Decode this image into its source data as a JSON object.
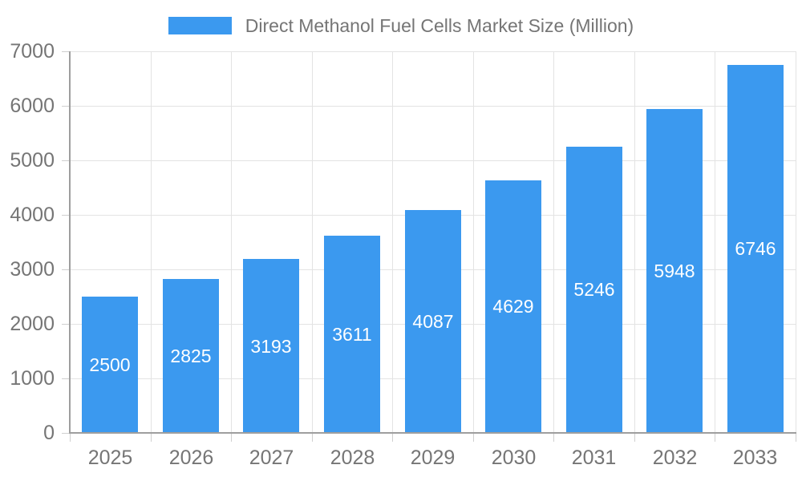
{
  "chart_data": {
    "type": "bar",
    "title": "Direct Methanol Fuel Cells Market Size (Million)",
    "legend": {
      "position": "top",
      "entries": [
        "Direct Methanol Fuel Cells Market Size (Million)"
      ]
    },
    "categories": [
      "2025",
      "2026",
      "2027",
      "2028",
      "2029",
      "2030",
      "2031",
      "2032",
      "2033"
    ],
    "series": [
      {
        "name": "Direct Methanol Fuel Cells Market Size (Million)",
        "values": [
          2500,
          2825,
          3193,
          3611,
          4087,
          4629,
          5246,
          5948,
          6746
        ]
      }
    ],
    "value_labels": [
      "2500",
      "2825",
      "3193",
      "3611",
      "4087",
      "4629",
      "5246",
      "5948",
      "6746"
    ],
    "xlabel": "",
    "ylabel": "",
    "ylim": [
      0,
      7000
    ],
    "ytick_step": 1000,
    "ytick_labels": [
      "0",
      "1000",
      "2000",
      "3000",
      "4000",
      "5000",
      "6000",
      "7000"
    ],
    "grid": true,
    "colors": {
      "bar": "#3B99EF",
      "value_label": "#FFFFFF",
      "axis_label": "#757575",
      "legend_label": "#757575",
      "gridline": "#E3E3E3",
      "tick": "#CFCFCF",
      "axis_line": "#9E9E9E"
    }
  }
}
